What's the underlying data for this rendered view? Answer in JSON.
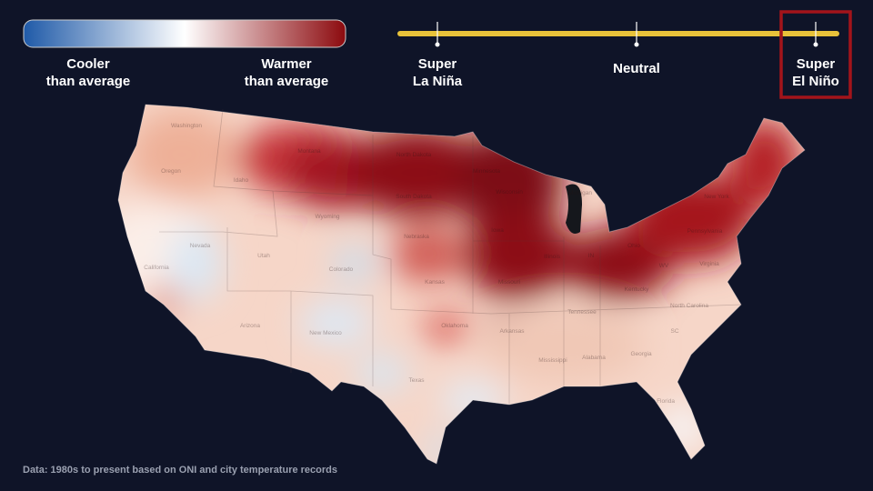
{
  "legend": {
    "cooler": [
      "Cooler",
      "than average"
    ],
    "warmer": [
      "Warmer",
      "than average"
    ]
  },
  "scale": {
    "stops": [
      {
        "label": [
          "Super",
          "La Niña"
        ]
      },
      {
        "label": [
          "Neutral"
        ]
      },
      {
        "label": [
          "Super",
          "El Niño"
        ]
      }
    ],
    "selected": 2
  },
  "map": {
    "state_labels": [
      "Washington",
      "Oregon",
      "California",
      "Nevada",
      "Idaho",
      "Montana",
      "Wyoming",
      "Utah",
      "Arizona",
      "Colorado",
      "New Mexico",
      "North Dakota",
      "South Dakota",
      "Nebraska",
      "Kansas",
      "Oklahoma",
      "Texas",
      "Minnesota",
      "Iowa",
      "Missouri",
      "Arkansas",
      "Wisconsin",
      "Illinois",
      "Michigan",
      "IN",
      "Ohio",
      "Kentucky",
      "Tennessee",
      "Mississippi",
      "Alabama",
      "Georgia",
      "Florida",
      "SC",
      "North Carolina",
      "Virginia",
      "WV",
      "Pennsylvania",
      "New York"
    ]
  },
  "footnote": "Data: 1980s to present based on ONI and city temperature records"
}
